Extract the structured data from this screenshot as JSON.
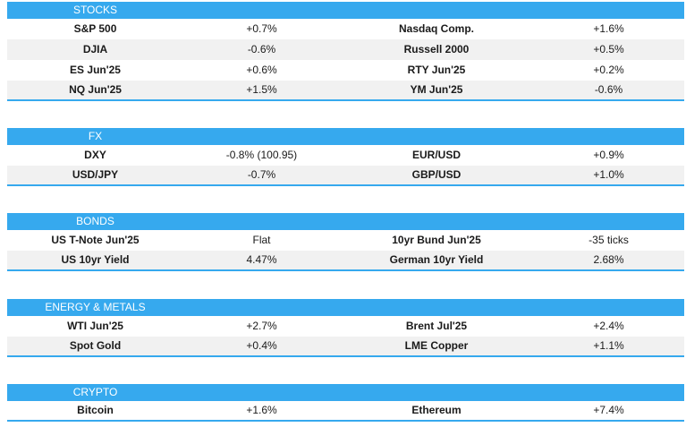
{
  "sections": [
    {
      "title": "STOCKS",
      "rows": [
        {
          "n1": "S&P 500",
          "v1": "+0.7%",
          "n2": "Nasdaq Comp.",
          "v2": "+1.6%"
        },
        {
          "n1": "DJIA",
          "v1": "-0.6%",
          "n2": "Russell 2000",
          "v2": "+0.5%"
        },
        {
          "n1": "ES Jun'25",
          "v1": "+0.6%",
          "n2": "RTY Jun'25",
          "v2": "+0.2%"
        },
        {
          "n1": "NQ Jun'25",
          "v1": "+1.5%",
          "n2": "YM Jun'25",
          "v2": "-0.6%"
        }
      ]
    },
    {
      "title": "FX",
      "rows": [
        {
          "n1": "DXY",
          "v1": "-0.8% (100.95)",
          "n2": "EUR/USD",
          "v2": "+0.9%"
        },
        {
          "n1": "USD/JPY",
          "v1": "-0.7%",
          "n2": "GBP/USD",
          "v2": "+1.0%"
        }
      ]
    },
    {
      "title": "BONDS",
      "rows": [
        {
          "n1": "US T-Note Jun'25",
          "v1": "Flat",
          "n2": "10yr Bund Jun'25",
          "v2": "-35 ticks"
        },
        {
          "n1": "US 10yr Yield",
          "v1": "4.47%",
          "n2": "German 10yr Yield",
          "v2": "2.68%"
        }
      ]
    },
    {
      "title": "ENERGY & METALS",
      "rows": [
        {
          "n1": "WTI Jun'25",
          "v1": "+2.7%",
          "n2": "Brent Jul'25",
          "v2": "+2.4%"
        },
        {
          "n1": "Spot Gold",
          "v1": "+0.4%",
          "n2": "LME Copper",
          "v2": "+1.1%"
        }
      ]
    },
    {
      "title": "CRYPTO",
      "rows": [
        {
          "n1": "Bitcoin",
          "v1": "+1.6%",
          "n2": "Ethereum",
          "v2": "+7.4%"
        }
      ]
    }
  ],
  "colors": {
    "header_bg": "#36a9ee",
    "alt_row_bg": "#f1f1f1"
  }
}
